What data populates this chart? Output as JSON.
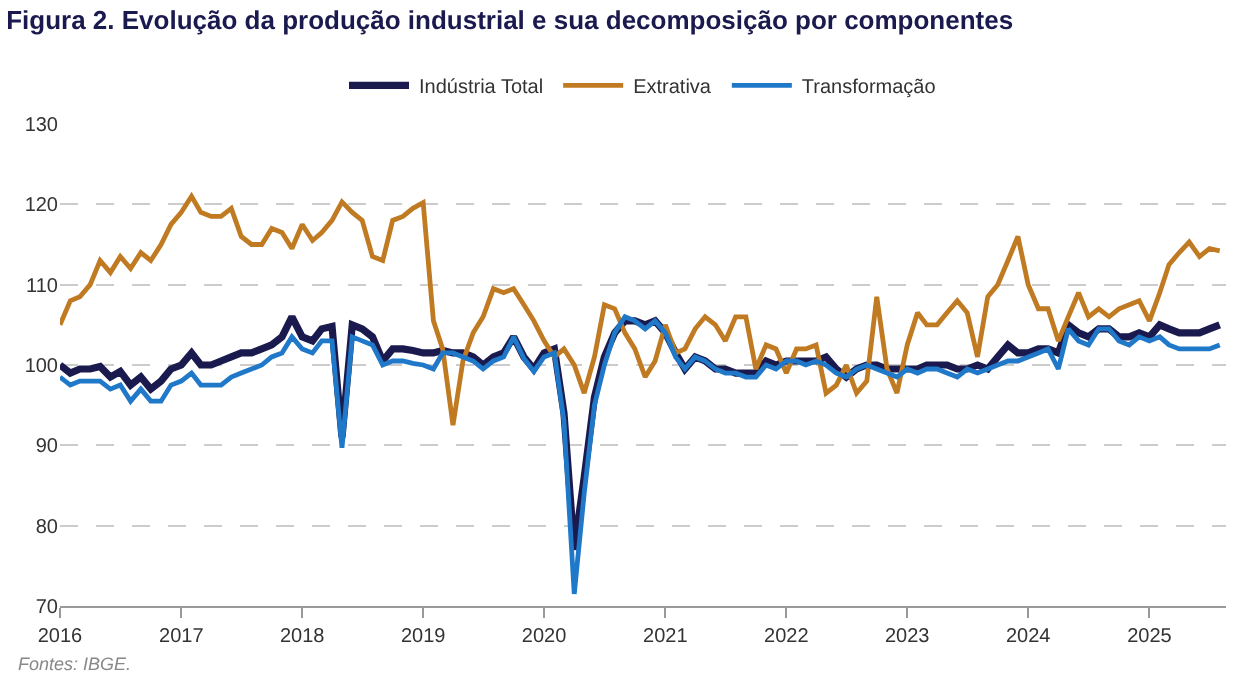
{
  "chart_data": {
    "type": "line",
    "title": "Figura 2. Evolução da produção industrial e sua decomposição por componentes",
    "x": [
      "2016-01",
      "2016-02",
      "2016-03",
      "2016-04",
      "2016-05",
      "2016-06",
      "2016-07",
      "2016-08",
      "2016-09",
      "2016-10",
      "2016-11",
      "2016-12",
      "2017-01",
      "2017-02",
      "2017-03",
      "2017-04",
      "2017-05",
      "2017-06",
      "2017-07",
      "2017-08",
      "2017-09",
      "2017-10",
      "2017-11",
      "2017-12",
      "2018-01",
      "2018-02",
      "2018-03",
      "2018-04",
      "2018-05",
      "2018-06",
      "2018-07",
      "2018-08",
      "2018-09",
      "2018-10",
      "2018-11",
      "2018-12",
      "2019-01",
      "2019-02",
      "2019-03",
      "2019-04",
      "2019-05",
      "2019-06",
      "2019-07",
      "2019-08",
      "2019-09",
      "2019-10",
      "2019-11",
      "2019-12",
      "2020-01",
      "2020-02",
      "2020-03",
      "2020-04",
      "2020-05",
      "2020-06",
      "2020-07",
      "2020-08",
      "2020-09",
      "2020-10",
      "2020-11",
      "2020-12",
      "2021-01",
      "2021-02",
      "2021-03",
      "2021-04",
      "2021-05",
      "2021-06",
      "2021-07",
      "2021-08",
      "2021-09",
      "2021-10",
      "2021-11",
      "2021-12",
      "2022-01",
      "2022-02",
      "2022-03",
      "2022-04",
      "2022-05",
      "2022-06",
      "2022-07",
      "2022-08",
      "2022-09",
      "2022-10",
      "2022-11",
      "2022-12",
      "2023-01",
      "2023-02",
      "2023-03",
      "2023-04",
      "2023-05",
      "2023-06",
      "2023-07",
      "2023-08",
      "2023-09",
      "2023-10",
      "2023-11",
      "2023-12",
      "2024-01",
      "2024-02",
      "2024-03",
      "2024-04",
      "2024-05",
      "2024-06",
      "2024-07",
      "2024-08",
      "2024-09",
      "2024-10",
      "2024-11",
      "2024-12",
      "2025-01",
      "2025-02",
      "2025-03",
      "2025-04",
      "2025-05",
      "2025-06",
      "2025-07",
      "2025-08"
    ],
    "series": [
      {
        "name": "Indústria Total",
        "color": "#1b1a4f",
        "values": [
          100,
          99,
          99.5,
          99.5,
          99.8,
          98.5,
          99.2,
          97.5,
          98.5,
          97,
          98,
          99.5,
          100,
          101.5,
          100,
          100,
          100.5,
          101,
          101.5,
          101.5,
          102,
          102.5,
          103.5,
          106,
          103.5,
          103,
          104.5,
          104.8,
          91,
          105,
          104.5,
          103.5,
          100.5,
          102,
          102,
          101.8,
          101.5,
          101.5,
          101.8,
          101.5,
          101.5,
          101,
          100,
          101,
          101.5,
          103.5,
          101,
          99.5,
          101.5,
          102,
          94,
          77,
          86,
          96,
          101,
          104,
          105.5,
          105.5,
          105,
          105.5,
          104,
          101.5,
          99.5,
          101,
          100.5,
          99.5,
          99.5,
          99,
          99,
          99,
          100.5,
          100,
          100.5,
          100.5,
          100.5,
          100.5,
          101,
          99.5,
          98.5,
          99.5,
          100,
          100,
          99.5,
          99.5,
          99.5,
          99.5,
          100,
          100,
          100,
          99.5,
          99.5,
          100,
          99.5,
          101,
          102.5,
          101.5,
          101.5,
          102,
          102,
          101.5,
          105,
          104,
          103.5,
          104.5,
          104.5,
          103.5,
          103.5,
          104,
          103.5,
          105,
          104.5,
          104,
          104,
          104,
          104.5,
          105
        ]
      },
      {
        "name": "Extrativa",
        "color": "#c07a22",
        "values": [
          105,
          108,
          108.5,
          110,
          113,
          111.5,
          113.5,
          112,
          114,
          113,
          115,
          117.5,
          119,
          121,
          119,
          118.5,
          118.5,
          119.5,
          116,
          115,
          115,
          117,
          116.5,
          114.5,
          117.5,
          115.5,
          116.5,
          118,
          120.3,
          119,
          118,
          113.5,
          113,
          118,
          118.5,
          119.5,
          120.2,
          105.5,
          102,
          92.5,
          100.5,
          104,
          106,
          109.5,
          109,
          109.5,
          107.5,
          105.5,
          103,
          101,
          102,
          100,
          96.5,
          101,
          107.5,
          107,
          104,
          102,
          98.5,
          100.5,
          105,
          101.5,
          102,
          104.5,
          106,
          105,
          103,
          106,
          106,
          99.5,
          102.5,
          102,
          99,
          102,
          102,
          102.5,
          96.5,
          97.5,
          100,
          96.5,
          98,
          108.5,
          99.5,
          96.5,
          102.5,
          106.5,
          105,
          105,
          106.5,
          108,
          106.5,
          101,
          108.5,
          110,
          113,
          116,
          110,
          107,
          107,
          103,
          106,
          109,
          106,
          107,
          106,
          107,
          107.5,
          108,
          105.5,
          109,
          112.5,
          114,
          115.3,
          113.5,
          114.5,
          114.2
        ]
      },
      {
        "name": "Transformação",
        "color": "#1f78c8",
        "values": [
          98.5,
          97.5,
          98,
          98,
          98,
          97,
          97.5,
          95.5,
          97,
          95.5,
          95.5,
          97.5,
          98,
          99,
          97.5,
          97.5,
          97.5,
          98.5,
          99,
          99.5,
          100,
          101,
          101.5,
          103.5,
          102,
          101.5,
          103,
          103,
          89.7,
          103.5,
          103,
          102.5,
          100,
          100.5,
          100.5,
          100.2,
          100,
          99.5,
          101.5,
          101.5,
          101,
          100.5,
          99.5,
          100.5,
          101,
          103.5,
          100.8,
          99.2,
          101,
          101.5,
          93,
          71.5,
          84,
          95,
          100,
          104,
          106,
          105.5,
          104.5,
          105.5,
          104,
          101,
          99.5,
          101,
          100.5,
          99.5,
          99,
          99,
          98.5,
          98.5,
          100,
          99.5,
          100.5,
          100.5,
          100,
          100.5,
          100,
          99,
          98.5,
          99.5,
          100,
          99.5,
          99,
          98.5,
          99.5,
          99,
          99.5,
          99.5,
          99,
          98.5,
          99.5,
          99,
          99.5,
          100,
          100.5,
          100.5,
          101,
          101.5,
          102,
          99.5,
          104.5,
          103,
          102.5,
          104.5,
          104.5,
          103,
          102.5,
          103.5,
          103,
          103.5,
          102.5,
          102,
          102,
          102,
          102,
          102.5
        ]
      }
    ],
    "xlim": [
      "2016-01-01",
      "2025-08-20"
    ],
    "xticks": [
      {
        "value": "2016-01-01",
        "label": "2016"
      },
      {
        "value": "2017-01-01",
        "label": "2017"
      },
      {
        "value": "2018-01-01",
        "label": "2018"
      },
      {
        "value": "2019-01-01",
        "label": "2019"
      },
      {
        "value": "2020-01-01",
        "label": "2020"
      },
      {
        "value": "2021-01-01",
        "label": "2021"
      },
      {
        "value": "2022-01-01",
        "label": "2022"
      },
      {
        "value": "2023-01-01",
        "label": "2023"
      },
      {
        "value": "2024-01-01",
        "label": "2024"
      },
      {
        "value": "2025-01-01",
        "label": "2025"
      }
    ],
    "ylim": [
      70,
      130
    ],
    "yticks": [
      70,
      80,
      90,
      100,
      110,
      120,
      130
    ],
    "grid": "y",
    "legend": "top",
    "marker": "none",
    "line_style": "solid",
    "annotations": [
      "Fontes: IBGE."
    ]
  }
}
